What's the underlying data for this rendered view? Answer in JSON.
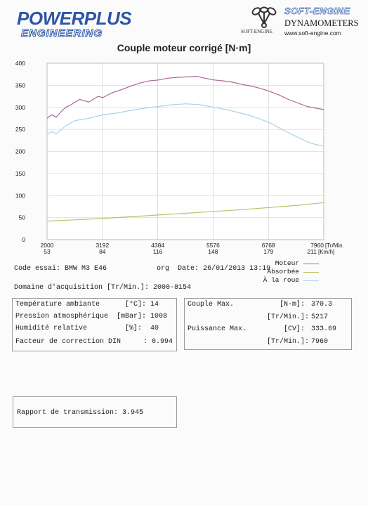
{
  "header": {
    "brand_main": "POWERPLUS",
    "brand_sub": "ENGINEERING",
    "vendor_logo": "SOFT-ENGINE",
    "vendor_small": "SOFT-ENGINE",
    "vendor_title": "DYNAMOMETERS",
    "vendor_url": "www.soft-engine.com"
  },
  "chart_data": {
    "type": "line",
    "title": "Couple moteur corrigé [N·m]",
    "x_unit_label": "[Tr/Min.",
    "x2_unit_label": "[Km/h]",
    "xlim": [
      2000,
      7960
    ],
    "ylim": [
      0,
      400
    ],
    "y_ticks": [
      0,
      50,
      100,
      150,
      200,
      250,
      300,
      350,
      400
    ],
    "x_ticks": [
      2000,
      3192,
      4384,
      5576,
      6768,
      7960
    ],
    "x_ticks_speed": [
      53,
      84,
      116,
      148,
      179,
      211
    ],
    "grid": true,
    "legend_position": "below-right",
    "series": [
      {
        "name": "Moteur",
        "color": "#b0659a",
        "x": [
          2000,
          2100,
          2200,
          2300,
          2400,
          2500,
          2700,
          2900,
          3100,
          3200,
          3400,
          3600,
          3800,
          4000,
          4200,
          4400,
          4600,
          4800,
          5000,
          5217,
          5400,
          5600,
          5800,
          6000,
          6200,
          6400,
          6600,
          6800,
          7000,
          7200,
          7400,
          7600,
          7800,
          7960
        ],
        "y": [
          275,
          283,
          278,
          290,
          300,
          305,
          318,
          312,
          325,
          322,
          333,
          340,
          348,
          355,
          360,
          362,
          366,
          368,
          369,
          370.3,
          366,
          362,
          360,
          357,
          352,
          348,
          343,
          336,
          328,
          318,
          310,
          302,
          298,
          295
        ]
      },
      {
        "name": "Absorbée",
        "color": "#b9c26a",
        "x": [
          2000,
          2600,
          3200,
          3800,
          4400,
          5000,
          5600,
          6200,
          6800,
          7400,
          7960
        ],
        "y": [
          42,
          45,
          48,
          52,
          56,
          60,
          64,
          68,
          73,
          78,
          84
        ]
      },
      {
        "name": "À la roue",
        "color": "#a9d2ea",
        "x": [
          2000,
          2100,
          2200,
          2400,
          2600,
          2900,
          3200,
          3500,
          3800,
          4100,
          4400,
          4700,
          5000,
          5300,
          5600,
          5900,
          6200,
          6500,
          6800,
          7100,
          7400,
          7700,
          7960
        ],
        "y": [
          238,
          245,
          240,
          258,
          270,
          275,
          283,
          287,
          293,
          298,
          302,
          306,
          308,
          306,
          300,
          294,
          286,
          277,
          265,
          248,
          232,
          218,
          212
        ]
      }
    ]
  },
  "info": {
    "code_essai_label": "Code essai:",
    "code_essai_value": "BMW M3 E46",
    "org_label": "org",
    "date_label": "Date:",
    "date_value": "26/01/2013 13:19",
    "domaine_label": "Domaine d'acquisition [Tr/Min.]:",
    "domaine_value": "2000-8154"
  },
  "conditions": {
    "rows": [
      {
        "label": "Température ambiante",
        "unit": "[°C]:",
        "value": "14"
      },
      {
        "label": "Pression atmosphérique",
        "unit": "[mBar]:",
        "value": "1008"
      },
      {
        "label": "Humidité relative",
        "unit": "[%]:",
        "value": "40"
      },
      {
        "label": "Facteur de correction DIN",
        "unit": ":",
        "value": "0.994"
      }
    ]
  },
  "results": {
    "couple_label": "Couple Max.",
    "couple_unit": "[N·m]:",
    "couple_value": "370.3",
    "couple_rpm_unit": "[Tr/Min.]:",
    "couple_rpm_value": "5217",
    "puissance_label": "Puissance Max.",
    "puissance_unit": "[CV]:",
    "puissance_value": "333.69",
    "puissance_rpm_unit": "[Tr/Min.]:",
    "puissance_rpm_value": "7960"
  },
  "transmission": {
    "label": "Rapport de transmission:",
    "value": "3.945"
  }
}
